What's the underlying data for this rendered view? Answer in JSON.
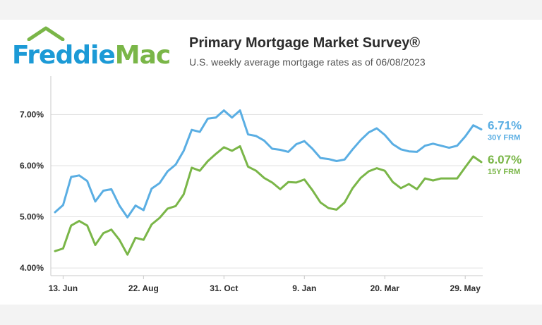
{
  "logo": {
    "part1": "Freddie",
    "part2": "Mac"
  },
  "header": {
    "title": "Primary Mortgage Market Survey®",
    "subtitle": "U.S. weekly average mortgage rates as of 06/08/2023"
  },
  "colors": {
    "series_30y": "#5aaee3",
    "series_15y": "#7ab648",
    "logo_blue": "#1c9ad6",
    "logo_green": "#7ab648"
  },
  "chart_data": {
    "type": "line",
    "ylim": [
      3.85,
      7.75
    ],
    "y_ticks": [
      {
        "value": 4.0,
        "label": "4.00%"
      },
      {
        "value": 5.0,
        "label": "5.00%"
      },
      {
        "value": 6.0,
        "label": "6.00%"
      },
      {
        "value": 7.0,
        "label": "7.00%"
      }
    ],
    "x_ticks": [
      {
        "index": 1,
        "label": "13. Jun"
      },
      {
        "index": 11,
        "label": "22. Aug"
      },
      {
        "index": 21,
        "label": "31. Oct"
      },
      {
        "index": 31,
        "label": "9. Jan"
      },
      {
        "index": 41,
        "label": "20. Mar"
      },
      {
        "index": 51,
        "label": "29. May"
      }
    ],
    "series": [
      {
        "name": "30Y FRM",
        "end_label": "6.71%",
        "values": [
          5.09,
          5.23,
          5.78,
          5.81,
          5.7,
          5.3,
          5.51,
          5.54,
          5.22,
          4.99,
          5.22,
          5.13,
          5.55,
          5.66,
          5.89,
          6.02,
          6.29,
          6.7,
          6.66,
          6.92,
          6.94,
          7.08,
          6.94,
          7.08,
          6.61,
          6.58,
          6.49,
          6.33,
          6.31,
          6.27,
          6.42,
          6.48,
          6.33,
          6.15,
          6.13,
          6.09,
          6.12,
          6.32,
          6.5,
          6.65,
          6.73,
          6.6,
          6.42,
          6.32,
          6.28,
          6.27,
          6.39,
          6.43,
          6.39,
          6.35,
          6.39,
          6.57,
          6.79,
          6.71
        ]
      },
      {
        "name": "15Y FRM",
        "end_label": "6.07%",
        "values": [
          4.33,
          4.38,
          4.83,
          4.92,
          4.83,
          4.45,
          4.68,
          4.75,
          4.55,
          4.26,
          4.59,
          4.55,
          4.85,
          4.98,
          5.16,
          5.21,
          5.44,
          5.96,
          5.9,
          6.09,
          6.23,
          6.36,
          6.29,
          6.38,
          5.98,
          5.9,
          5.76,
          5.67,
          5.54,
          5.68,
          5.67,
          5.73,
          5.52,
          5.28,
          5.17,
          5.14,
          5.28,
          5.56,
          5.76,
          5.89,
          5.95,
          5.9,
          5.68,
          5.56,
          5.64,
          5.54,
          5.75,
          5.71,
          5.75,
          5.75,
          5.75,
          5.97,
          6.18,
          6.07
        ]
      }
    ]
  }
}
